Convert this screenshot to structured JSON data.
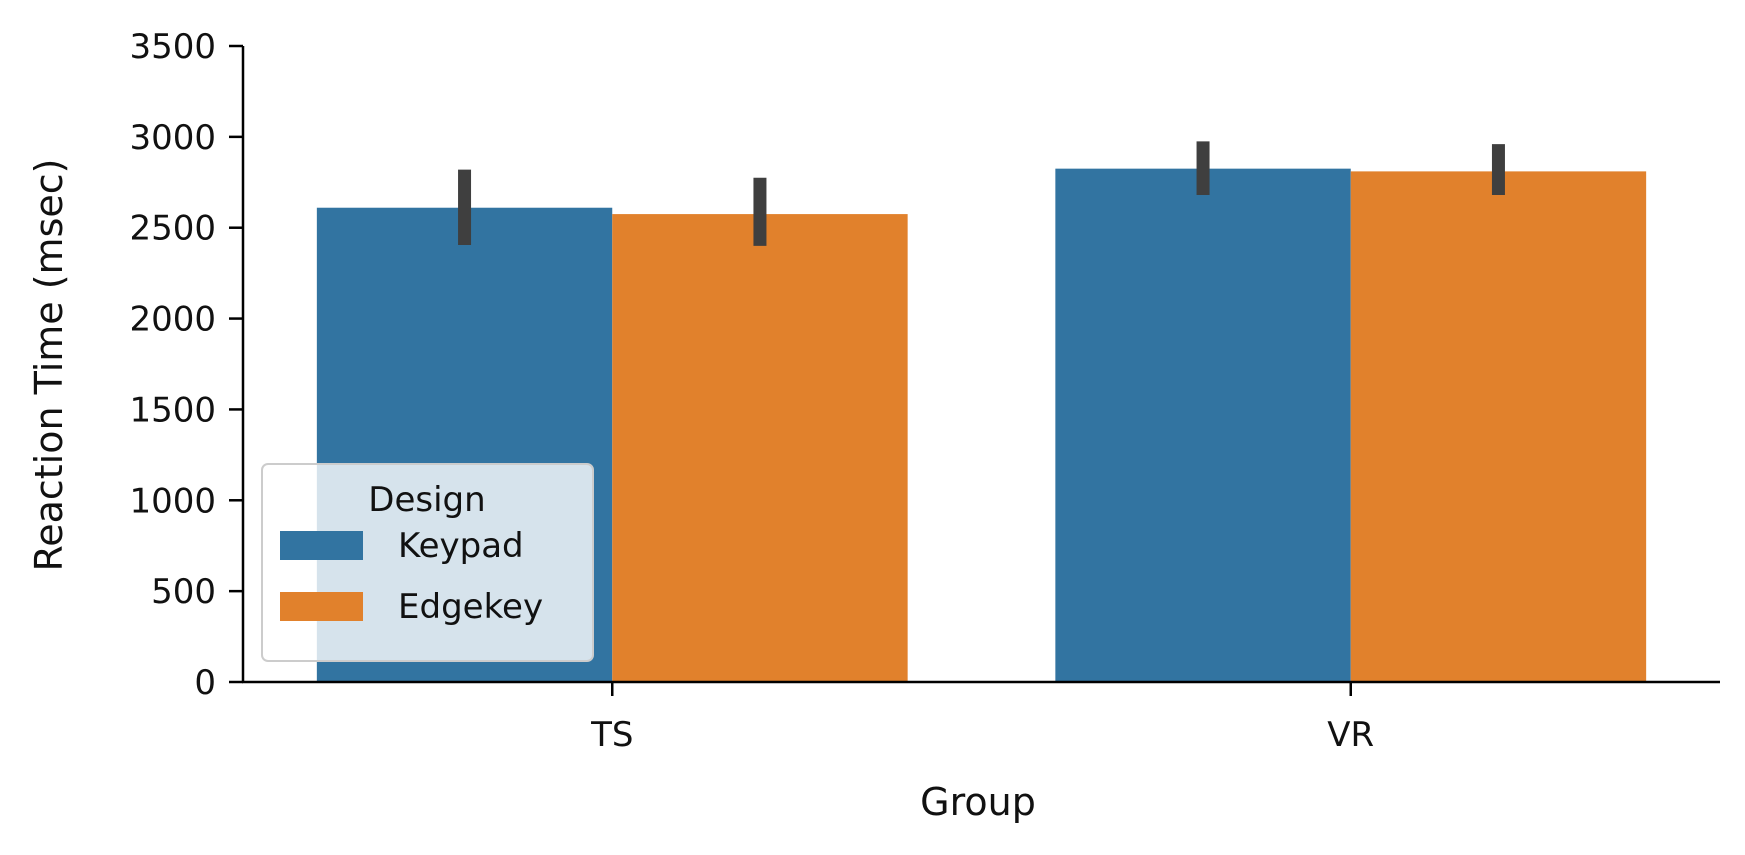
{
  "chart_data": {
    "type": "bar",
    "title": "",
    "xlabel": "Group",
    "ylabel": "Reaction Time (msec)",
    "categories": [
      "TS",
      "VR"
    ],
    "series": [
      {
        "name": "Keypad",
        "color": "#3274a1",
        "values": [
          2610,
          2825
        ],
        "error": [
          [
            2405,
            2820
          ],
          [
            2680,
            2975
          ]
        ]
      },
      {
        "name": "Edgekey",
        "color": "#e1812c",
        "values": [
          2575,
          2810
        ],
        "error": [
          [
            2400,
            2775
          ],
          [
            2680,
            2960
          ]
        ]
      }
    ],
    "ylim": [
      0,
      3500
    ],
    "yticks": [
      0,
      500,
      1000,
      1500,
      2000,
      2500,
      3000,
      3500
    ],
    "legend": {
      "title": "Design",
      "position": "lower-left"
    },
    "error_bar_color": "#3f3f3f",
    "grid": false
  }
}
